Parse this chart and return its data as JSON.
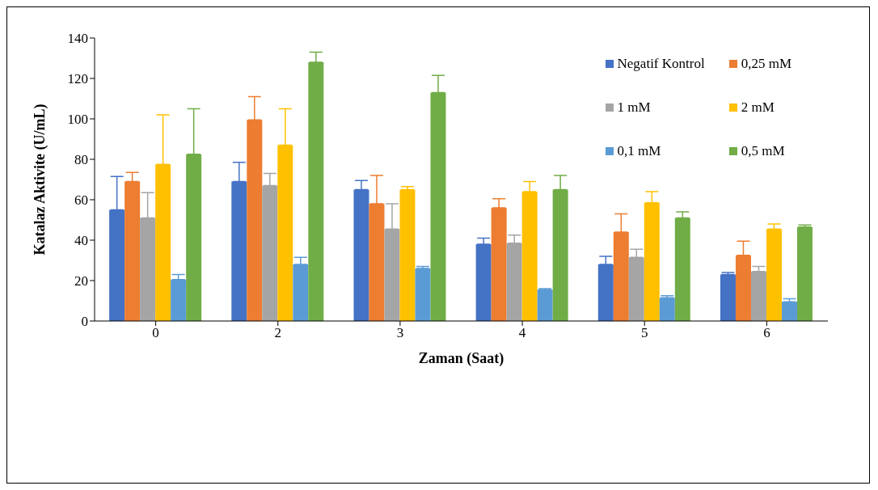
{
  "chart_data": {
    "type": "bar",
    "xlabel": "Zaman (Saat)",
    "ylabel": "Katalaz Aktivite (U/mL)",
    "categories": [
      "0",
      "2",
      "3",
      "4",
      "5",
      "6"
    ],
    "series": [
      {
        "name": "Negatif Kontrol",
        "color": "#4472c4",
        "values": [
          55,
          69,
          65,
          38,
          28,
          23
        ],
        "errors": [
          [
            55,
            71.5
          ],
          [
            69,
            78.5
          ],
          [
            65,
            69.5
          ],
          [
            38,
            41
          ],
          [
            28,
            32
          ],
          [
            23,
            24
          ]
        ]
      },
      {
        "name": "0,25 mM",
        "color": "#ed7d31",
        "values": [
          69,
          99.5,
          58,
          56,
          44,
          32.5
        ],
        "errors": [
          [
            69,
            73.5
          ],
          [
            99.5,
            111
          ],
          [
            58,
            72
          ],
          [
            56,
            60.5
          ],
          [
            44,
            53
          ],
          [
            32.5,
            39.5
          ]
        ]
      },
      {
        "name": "1 mM",
        "color": "#a5a5a5",
        "values": [
          51,
          67,
          45.5,
          38.5,
          31.5,
          24.5
        ],
        "errors": [
          [
            51,
            63.5
          ],
          [
            67,
            73
          ],
          [
            45.5,
            58
          ],
          [
            38.5,
            42.5
          ],
          [
            31.5,
            35.5
          ],
          [
            24.5,
            27
          ]
        ]
      },
      {
        "name": "2 mM",
        "color": "#ffc000",
        "values": [
          77.5,
          87,
          65,
          64,
          58.5,
          45.5
        ],
        "errors": [
          [
            77.5,
            102
          ],
          [
            87,
            105
          ],
          [
            65,
            66.5
          ],
          [
            64,
            69
          ],
          [
            58.5,
            64
          ],
          [
            45.5,
            48
          ]
        ]
      },
      {
        "name": "0,1 mM",
        "color": "#5b9bd5",
        "values": [
          20.5,
          28,
          26,
          15.5,
          11.5,
          9.5
        ],
        "errors": [
          [
            20.5,
            23
          ],
          [
            28,
            31.5
          ],
          [
            26,
            27
          ],
          [
            15.5,
            16
          ],
          [
            11.5,
            12.5
          ],
          [
            9.5,
            11
          ]
        ]
      },
      {
        "name": "0,5 mM",
        "color": "#70ad47",
        "values": [
          82.5,
          128,
          113,
          65,
          51,
          46.5
        ],
        "errors": [
          [
            82.5,
            105
          ],
          [
            128,
            133
          ],
          [
            113,
            121.5
          ],
          [
            65,
            72
          ],
          [
            51,
            54
          ],
          [
            46.5,
            47.5
          ]
        ]
      }
    ],
    "ylim": [
      0,
      140
    ],
    "yticks": [
      0,
      20,
      40,
      60,
      80,
      100,
      120,
      140
    ],
    "grid": false,
    "legend": "top right"
  }
}
